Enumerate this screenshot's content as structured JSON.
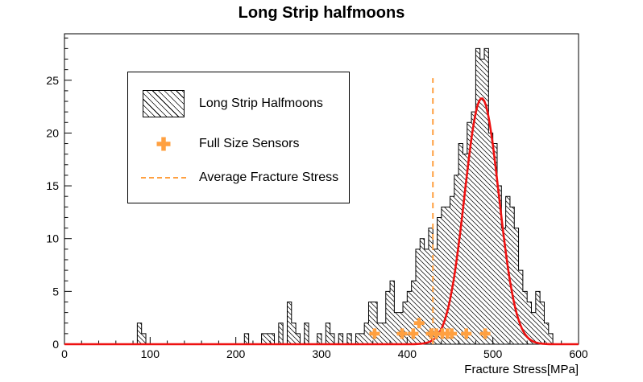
{
  "chart_data": {
    "type": "bar",
    "subtype": "histogram-with-gaussian-fit",
    "title": "Long Strip halfmoons",
    "xlabel": "Fracture Stress[MPa]",
    "ylabel": "",
    "xlim": [
      0,
      600
    ],
    "ylim": [
      0,
      29.4
    ],
    "x_ticks": [
      0,
      100,
      200,
      300,
      400,
      500,
      600
    ],
    "y_ticks": [
      0,
      5,
      10,
      15,
      20,
      25
    ],
    "x_minor_step": 20,
    "y_minor_step": 1,
    "grid": false,
    "legend_position": "upper-left",
    "histogram": {
      "name": "Long Strip Halfmoons",
      "style": "black-diagonal-hatch",
      "bin_start": 0,
      "bin_width": 5,
      "counts": [
        0,
        0,
        0,
        0,
        0,
        0,
        0,
        0,
        0,
        0,
        0,
        0,
        0,
        0,
        0,
        0,
        0,
        2,
        1,
        0,
        0,
        0,
        0,
        0,
        0,
        0,
        0,
        0,
        0,
        0,
        0,
        0,
        0,
        0,
        0,
        0,
        0,
        0,
        0,
        0,
        0,
        0,
        1,
        0,
        0,
        0,
        1,
        1,
        1,
        0,
        2,
        0,
        4,
        2,
        1,
        0,
        2,
        0,
        0,
        1,
        0,
        2,
        1,
        0,
        1,
        0,
        1,
        0,
        1,
        1,
        2,
        4,
        4,
        2,
        2,
        5,
        6,
        3,
        3,
        4,
        5,
        6,
        9,
        10,
        9,
        11,
        9,
        12,
        13,
        13,
        14,
        16,
        19,
        18,
        21,
        22,
        28,
        27,
        28,
        20,
        19,
        15,
        11,
        14,
        13,
        11,
        7,
        5,
        4,
        3,
        5,
        4,
        2,
        1,
        0,
        0,
        0,
        0,
        0,
        0
      ]
    },
    "fit": {
      "name": "Gaussian fit",
      "color": "#ee1111",
      "amplitude": 23.3,
      "mean": 487,
      "sigma": 20,
      "range": [
        0,
        600
      ]
    },
    "sensors": {
      "name": "Full Size Sensors",
      "marker": "thick-cross",
      "color": "#ffa040",
      "points": [
        [
          362,
          1
        ],
        [
          394,
          1
        ],
        [
          407,
          1
        ],
        [
          414,
          2
        ],
        [
          428,
          1
        ],
        [
          434,
          1
        ],
        [
          441,
          1
        ],
        [
          447,
          1
        ],
        [
          452,
          1
        ],
        [
          469,
          1
        ],
        [
          491,
          1
        ]
      ]
    },
    "average_line": {
      "name": "Average Fracture Stress",
      "x": 430,
      "y_top": 25.2,
      "style": "dashed",
      "color": "#ffa040"
    }
  },
  "legend": {
    "items": [
      {
        "label": "Long Strip Halfmoons",
        "icon": "hatched-box"
      },
      {
        "label": "Full Size Sensors",
        "icon": "orange-cross"
      },
      {
        "label": "Average Fracture Stress",
        "icon": "orange-dashed-line"
      }
    ]
  },
  "colors": {
    "accent_orange": "#ffa040",
    "fit_red": "#ee1111",
    "foreground": "#000000",
    "background": "#ffffff"
  }
}
